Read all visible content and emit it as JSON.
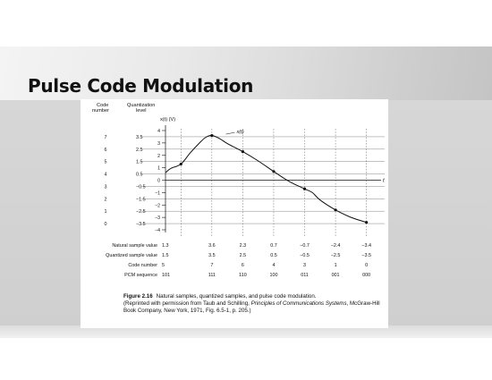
{
  "slide": {
    "title": "Pulse Code Modulation"
  },
  "chart_data": {
    "type": "line",
    "title": "",
    "xlabel": "t",
    "ylabel": "x(t) (V)",
    "ylim": [
      -4,
      4
    ],
    "y_ticks": [
      -4,
      -3,
      -2,
      -1,
      0,
      1,
      2,
      3,
      4
    ],
    "curve_label": "x(t)",
    "curve_points": [
      {
        "t": 0.0,
        "v": 0.6
      },
      {
        "t": 0.35,
        "v": 0.95
      },
      {
        "t": 1.0,
        "v": 1.3
      },
      {
        "t": 1.6,
        "v": 2.2
      },
      {
        "t": 2.2,
        "v": 3.0
      },
      {
        "t": 2.6,
        "v": 3.45
      },
      {
        "t": 3.0,
        "v": 3.6
      },
      {
        "t": 3.5,
        "v": 3.35
      },
      {
        "t": 4.0,
        "v": 2.95
      },
      {
        "t": 5.0,
        "v": 2.3
      },
      {
        "t": 6.0,
        "v": 1.55
      },
      {
        "t": 7.0,
        "v": 0.7
      },
      {
        "t": 8.0,
        "v": -0.1
      },
      {
        "t": 9.0,
        "v": -0.7
      },
      {
        "t": 9.5,
        "v": -1.0
      },
      {
        "t": 10.0,
        "v": -1.6
      },
      {
        "t": 11.0,
        "v": -2.4
      },
      {
        "t": 12.0,
        "v": -3.0
      },
      {
        "t": 13.0,
        "v": -3.4
      }
    ],
    "sample_times": [
      1,
      3,
      5,
      7,
      9,
      11,
      13
    ],
    "code_numbers_axis": [
      "7",
      "6",
      "5",
      "4",
      "3",
      "2",
      "1",
      "0"
    ],
    "quantization_levels": [
      "3.5",
      "2.5",
      "1.5",
      "0.5",
      "−0.5",
      "−1.5",
      "−2.5",
      "−3.5"
    ],
    "quantization_values": [
      3.5,
      2.5,
      1.5,
      0.5,
      -0.5,
      -1.5,
      -2.5,
      -3.5
    ],
    "column_headers": {
      "code_number": [
        "Code",
        "number"
      ],
      "quantization_level": [
        "Quantization",
        "level"
      ]
    },
    "table": {
      "rows": [
        {
          "label": "Natural sample value",
          "values": [
            "1.3",
            "3.6",
            "2.3",
            "0.7",
            "−0.7",
            "−2.4",
            "−3.4"
          ]
        },
        {
          "label": "Quantized sample value",
          "values": [
            "1.5",
            "3.5",
            "2.5",
            "0.5",
            "−0.5",
            "−2.5",
            "−3.5"
          ]
        },
        {
          "label": "Code number",
          "values": [
            "5",
            "7",
            "6",
            "4",
            "3",
            "1",
            "0"
          ]
        },
        {
          "label": "PCM sequence",
          "values": [
            "101",
            "111",
            "110",
            "100",
            "011",
            "001",
            "000"
          ]
        }
      ]
    },
    "natural_sample_values": [
      1.3,
      3.6,
      2.3,
      0.7,
      -0.7,
      -2.4,
      -3.4
    ]
  },
  "caption": {
    "figure_number": "Figure 2.16",
    "line1": "Natural samples, quantized samples, and pulse code modulation.",
    "line2": "(Reprinted with permission from Taub and Schilling, ",
    "book_title": "Principles of Communications Systems",
    "line3": ", McGraw-Hill Book Company, New York, 1971, Fig. 6.5-1, p. 205.)"
  }
}
